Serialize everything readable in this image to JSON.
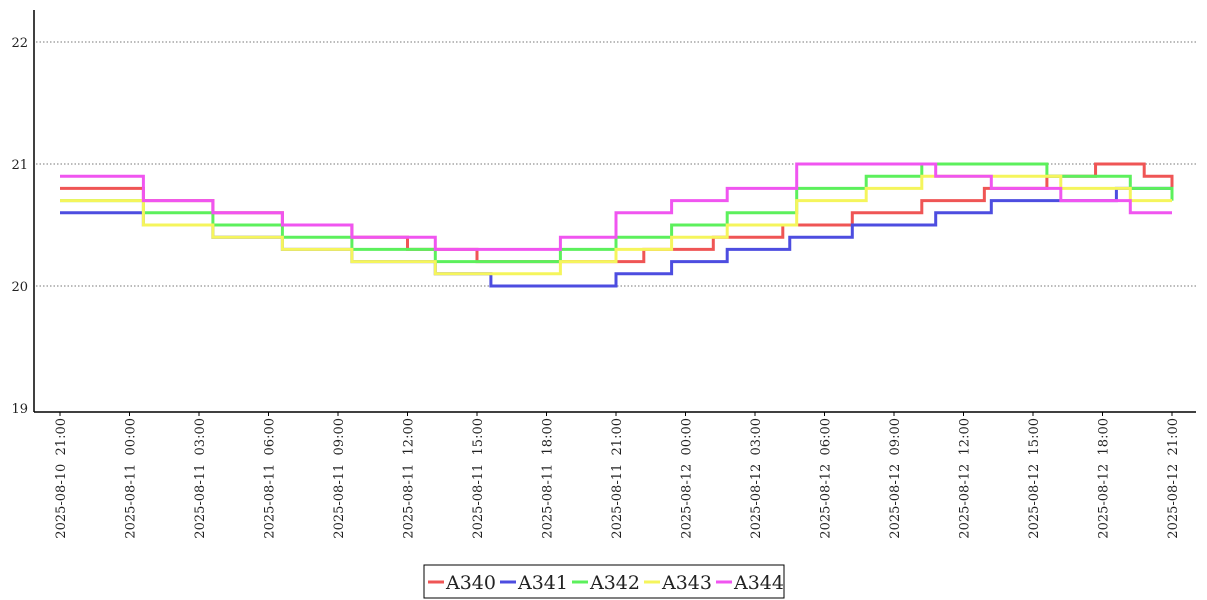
{
  "chart_data": {
    "type": "line",
    "title": "",
    "xlabel": "",
    "ylabel": "",
    "ylim": [
      19,
      22.3
    ],
    "yticks": [
      "19",
      "20",
      "21",
      "22"
    ],
    "xticks": [
      "2025-08-10  21:00",
      "2025-08-11  00:00",
      "2025-08-11  03:00",
      "2025-08-11  06:00",
      "2025-08-11  09:00",
      "2025-08-11  12:00",
      "2025-08-11  15:00",
      "2025-08-11  18:00",
      "2025-08-11  21:00",
      "2025-08-12  00:00",
      "2025-08-12  03:00",
      "2025-08-12  06:00",
      "2025-08-12  09:00",
      "2025-08-12  12:00",
      "2025-08-12  15:00",
      "2025-08-12  18:00",
      "2025-08-12  21:00"
    ],
    "grid": "horizontal-dotted",
    "legend_position": "bottom-center",
    "series": [
      {
        "name": "A340",
        "color": "#ef5555",
        "x": [
          0,
          1.2,
          2.2,
          3.2,
          4.2,
          5,
          6,
          7.5,
          8.4,
          9.4,
          10.4,
          11.4,
          12.4,
          13.3,
          14.2,
          14.9,
          15.3,
          15.6,
          16
        ],
        "y": [
          20.8,
          20.7,
          20.6,
          20.5,
          20.4,
          20.3,
          20.2,
          20.2,
          20.3,
          20.4,
          20.5,
          20.6,
          20.7,
          20.8,
          20.9,
          21.0,
          21.0,
          20.9,
          20.8
        ]
      },
      {
        "name": "A341",
        "color": "#4d4de0",
        "x": [
          0,
          1.2,
          2.2,
          3.2,
          4.2,
          5.4,
          6.2,
          7.2,
          8,
          8.8,
          9.6,
          10.5,
          11.4,
          12.6,
          13.4,
          14.4,
          15.2,
          16
        ],
        "y": [
          20.6,
          20.5,
          20.4,
          20.3,
          20.2,
          20.1,
          20.0,
          20.0,
          20.1,
          20.2,
          20.3,
          20.4,
          20.5,
          20.6,
          20.7,
          20.7,
          20.8,
          20.8
        ]
      },
      {
        "name": "A342",
        "color": "#5cf05c",
        "x": [
          0,
          1.2,
          2.2,
          3.2,
          4.2,
          5.4,
          6.2,
          7.2,
          8,
          8.8,
          9.6,
          10.6,
          11.6,
          12.4,
          13.2,
          14.2,
          15.4,
          16
        ],
        "y": [
          20.7,
          20.6,
          20.5,
          20.4,
          20.3,
          20.2,
          20.2,
          20.3,
          20.4,
          20.5,
          20.6,
          20.8,
          20.9,
          21.0,
          21.0,
          20.9,
          20.8,
          20.7
        ]
      },
      {
        "name": "A343",
        "color": "#f5f55c",
        "x": [
          0,
          1.2,
          2.2,
          3.2,
          4.2,
          5.4,
          6.2,
          7.2,
          8,
          8.8,
          9.6,
          10.6,
          11.6,
          12.4,
          13.4,
          14.4,
          15.4,
          16
        ],
        "y": [
          20.7,
          20.5,
          20.4,
          20.3,
          20.2,
          20.1,
          20.1,
          20.2,
          20.3,
          20.4,
          20.5,
          20.7,
          20.8,
          20.9,
          20.9,
          20.8,
          20.7,
          20.7
        ]
      },
      {
        "name": "A344",
        "color": "#f055f0",
        "x": [
          0,
          1.2,
          2.2,
          3.2,
          4.2,
          5.4,
          6.2,
          7.2,
          8,
          8.8,
          9.6,
          10.6,
          11.6,
          12.6,
          13.4,
          14.4,
          15.4,
          16
        ],
        "y": [
          20.9,
          20.7,
          20.6,
          20.5,
          20.4,
          20.3,
          20.3,
          20.4,
          20.6,
          20.7,
          20.8,
          21.0,
          21.0,
          20.9,
          20.8,
          20.7,
          20.6,
          20.6
        ]
      }
    ]
  }
}
